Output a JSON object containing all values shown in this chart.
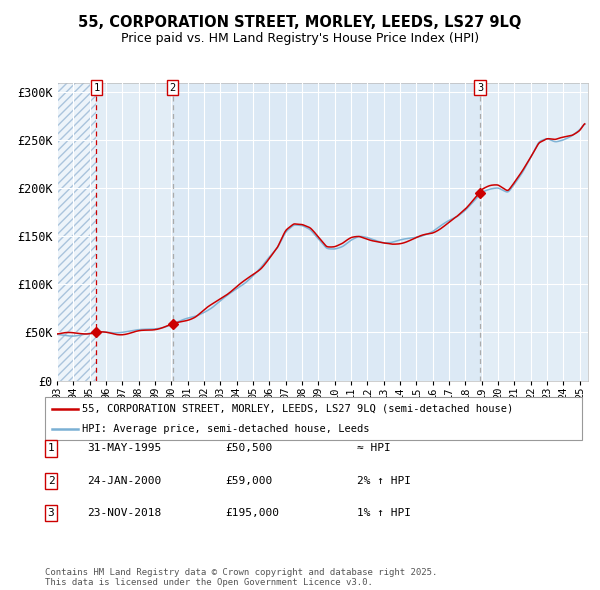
{
  "title_line1": "55, CORPORATION STREET, MORLEY, LEEDS, LS27 9LQ",
  "title_line2": "Price paid vs. HM Land Registry's House Price Index (HPI)",
  "background_color": "#dce9f5",
  "grid_color": "#ffffff",
  "red_line_color": "#cc0000",
  "blue_line_color": "#7ab0d4",
  "sale_marker_color": "#cc0000",
  "sale_points": [
    {
      "date_num": 1995.41,
      "price": 50500,
      "label": "1",
      "date_str": "31-MAY-1995",
      "change": "≈ HPI"
    },
    {
      "date_num": 2000.07,
      "price": 59000,
      "label": "2",
      "date_str": "24-JAN-2000",
      "change": "2% ↑ HPI"
    },
    {
      "date_num": 2018.9,
      "price": 195000,
      "label": "3",
      "date_str": "23-NOV-2018",
      "change": "1% ↑ HPI"
    }
  ],
  "vline1_date": 1995.41,
  "vline2_date": 2000.07,
  "vline3_date": 2018.9,
  "xmin": 1993.0,
  "xmax": 2025.5,
  "ymin": 0,
  "ymax": 310000,
  "yticks": [
    0,
    50000,
    100000,
    150000,
    200000,
    250000,
    300000
  ],
  "ytick_labels": [
    "£0",
    "£50K",
    "£100K",
    "£150K",
    "£200K",
    "£250K",
    "£300K"
  ],
  "legend_label_red": "55, CORPORATION STREET, MORLEY, LEEDS, LS27 9LQ (semi-detached house)",
  "legend_label_blue": "HPI: Average price, semi-detached house, Leeds",
  "footer_text": "Contains HM Land Registry data © Crown copyright and database right 2025.\nThis data is licensed under the Open Government Licence v3.0.",
  "hatch_xmin": 1993.0,
  "hatch_xmax": 1995.41,
  "shade1_xmin": 1995.41,
  "shade1_xmax": 2000.07,
  "shade2_xmin": 2018.9,
  "shade2_xmax": 2025.5
}
